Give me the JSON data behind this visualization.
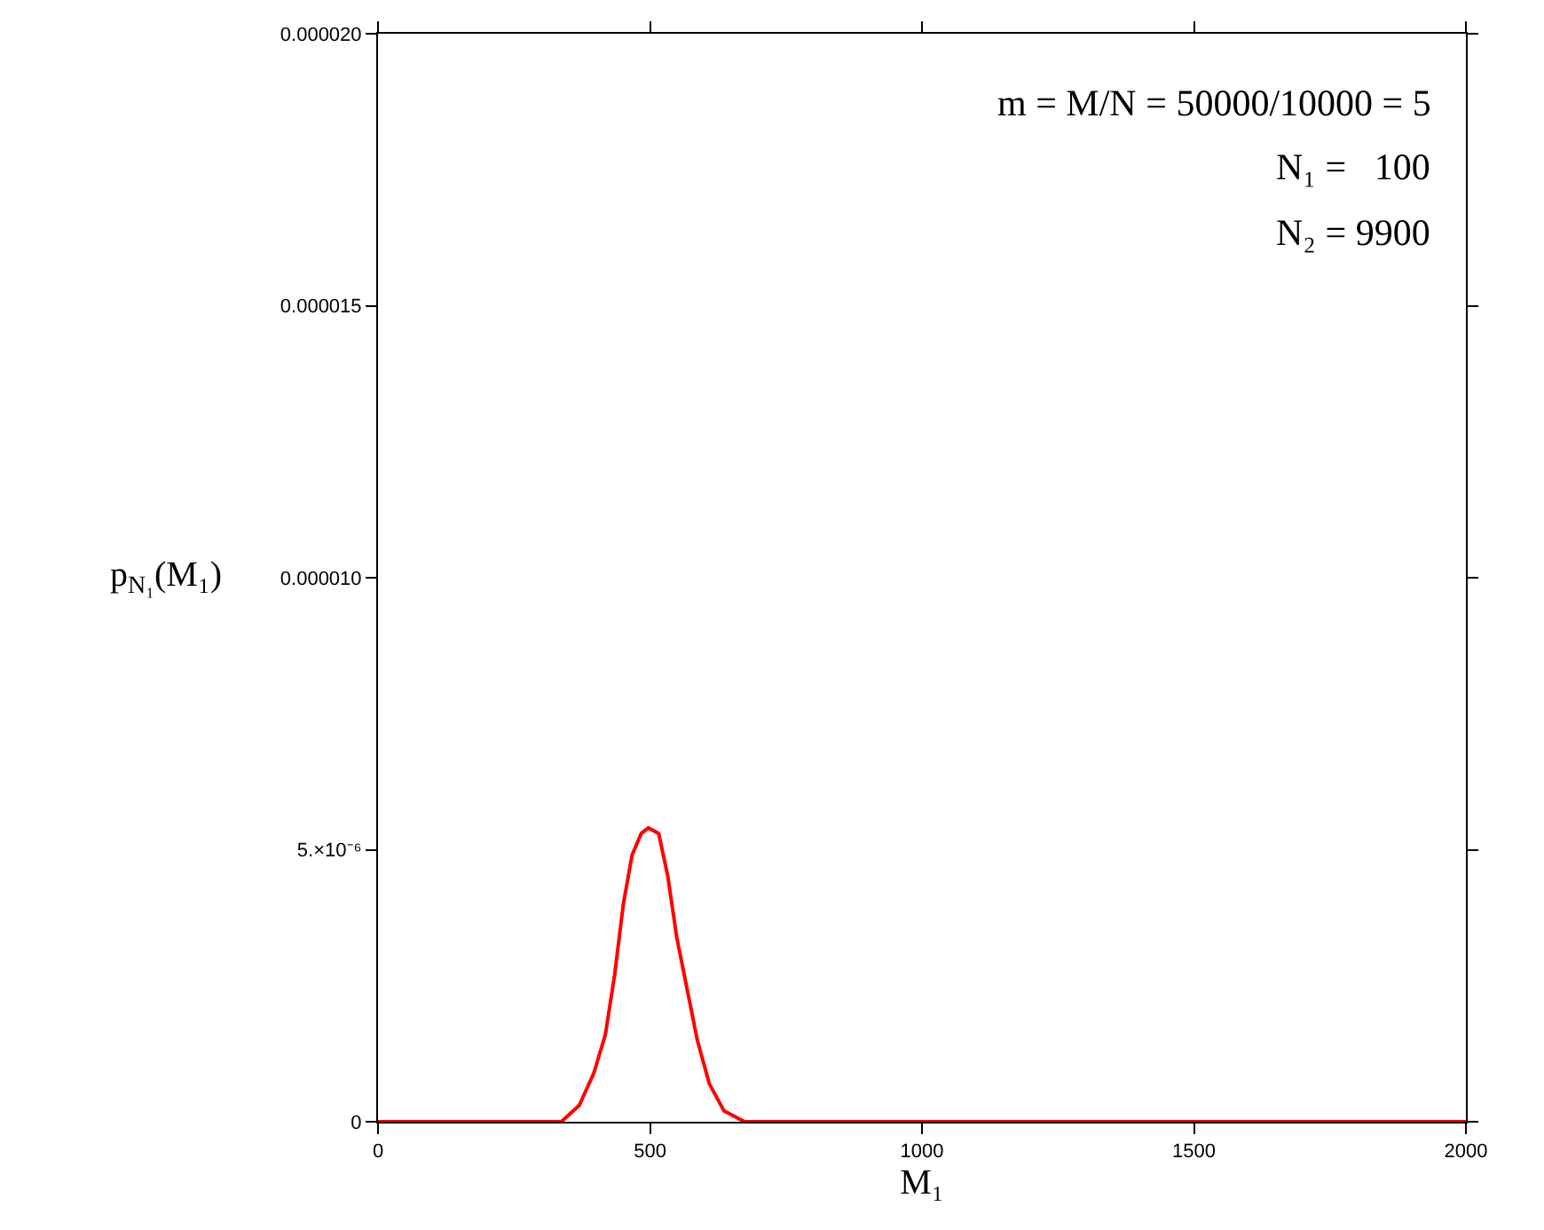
{
  "chart_data": {
    "type": "line",
    "xlabel": "M₁",
    "ylabel": "p$_{N₁}$(M₁)",
    "x": [
      0,
      300,
      337,
      370,
      397,
      418,
      435,
      451,
      467,
      484,
      497,
      516,
      533,
      549,
      567,
      587,
      609,
      636,
      674,
      720,
      2000
    ],
    "series": [
      {
        "color": "#ff0000",
        "values": [
          0,
          0,
          0,
          3e-07,
          9e-07,
          1.6e-06,
          2.7e-06,
          4e-06,
          4.9e-06,
          5.3e-06,
          5.4e-06,
          5.3e-06,
          4.5e-06,
          3.4e-06,
          2.5e-06,
          1.5e-06,
          7e-07,
          2e-07,
          0,
          0,
          0
        ]
      }
    ],
    "xlim": [
      0,
      2000
    ],
    "xticks": [
      0,
      500,
      1000,
      1500,
      2000
    ],
    "ylim": [
      0,
      2e-05
    ],
    "yticks": [
      0,
      {
        "value": 5e-06,
        "label": "5.×10⁻⁶"
      },
      {
        "value": 1e-05,
        "label": "0.000010"
      },
      {
        "value": 1.5e-05,
        "label": "0.000015"
      },
      {
        "value": 2e-05,
        "label": "0.000020"
      }
    ],
    "annotations": [
      "m = M/N = 50000/10000 = 5",
      "N₁ =   100",
      "N₂ = 9900"
    ],
    "marker": "none",
    "line_style": "solid"
  }
}
